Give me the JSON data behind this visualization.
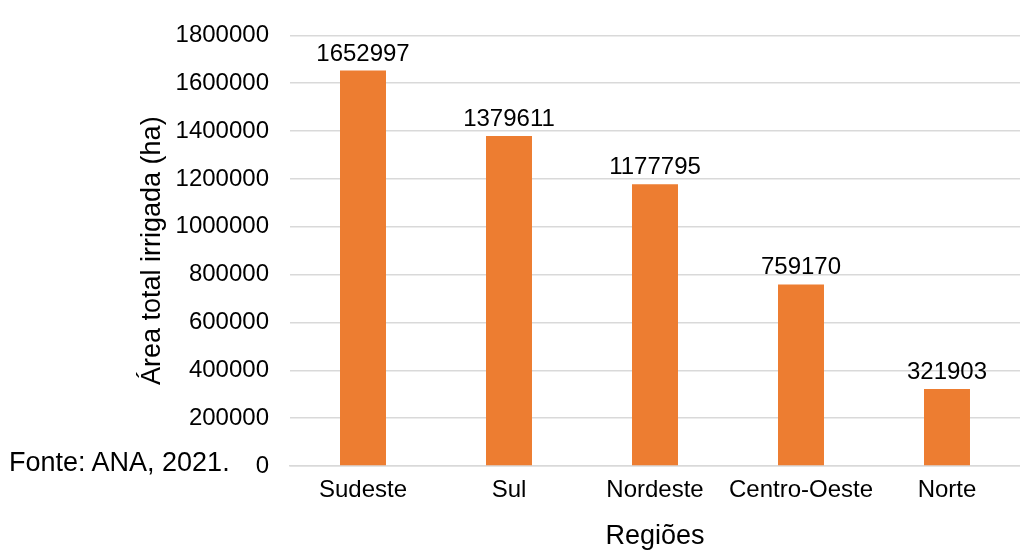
{
  "chart_data": {
    "type": "bar",
    "xlabel": "Regiões",
    "ylabel": "Área total irrigada (ha)",
    "annotations": [
      "Fonte: ANA, 2021."
    ],
    "categories": [
      "Sudeste",
      "Sul",
      "Nordeste",
      "Centro-Oeste",
      "Norte"
    ],
    "values": [
      1652997,
      1379611,
      1177795,
      759170,
      321903
    ],
    "color": "#ed7d31",
    "ylim": [
      0,
      1800000
    ],
    "yticks": [
      0,
      200000,
      400000,
      600000,
      800000,
      1000000,
      1200000,
      1400000,
      1600000,
      1800000
    ],
    "grid": "y",
    "data_labels": true
  }
}
